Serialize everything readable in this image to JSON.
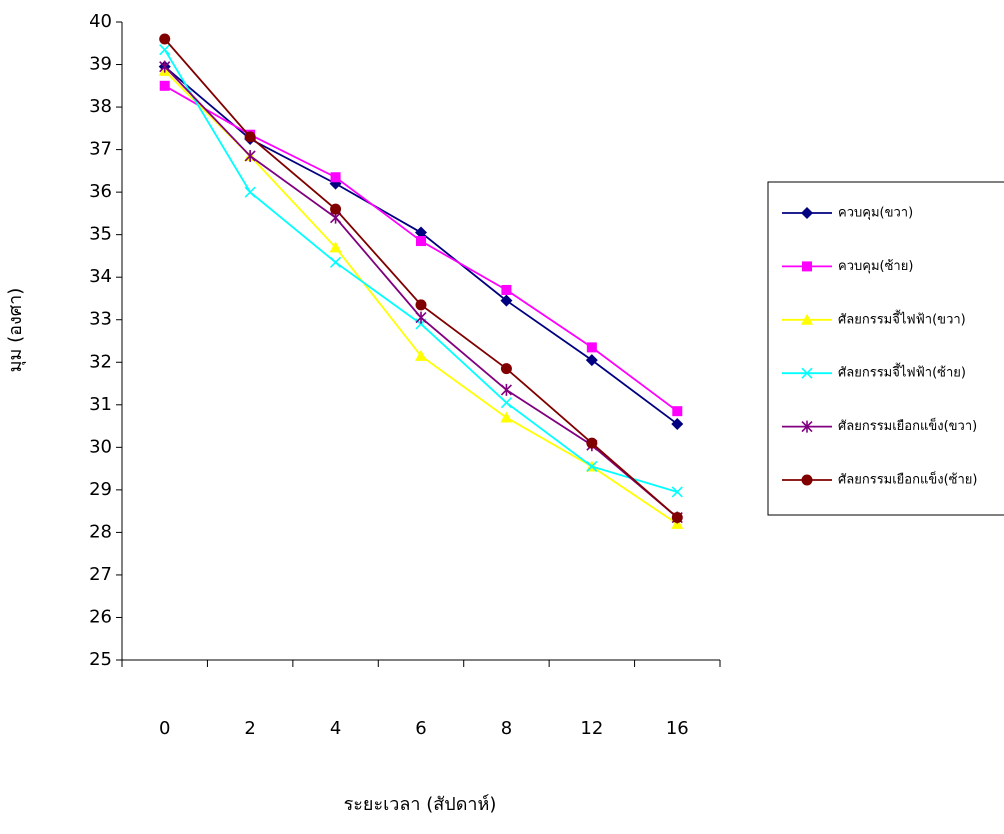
{
  "chart_data": {
    "type": "line",
    "x_label": "ระยะเวลา (สัปดาห์)",
    "y_label": "มุม (องศา)",
    "categories": [
      "0",
      "2",
      "4",
      "6",
      "8",
      "12",
      "16"
    ],
    "ylim": [
      25,
      40
    ],
    "yticks": [
      25,
      26,
      27,
      28,
      29,
      30,
      31,
      32,
      33,
      34,
      35,
      36,
      37,
      38,
      39,
      40
    ],
    "legend": "right",
    "series": [
      {
        "name": "ควบคุม(ขวา)",
        "color": "#000080",
        "marker": "diamond",
        "values": [
          38.95,
          37.25,
          36.2,
          35.05,
          33.45,
          32.05,
          30.55
        ]
      },
      {
        "name": "ควบคุม(ซ้าย)",
        "color": "#ff00ff",
        "marker": "square",
        "values": [
          38.5,
          37.35,
          36.35,
          34.85,
          33.7,
          32.35,
          30.85
        ]
      },
      {
        "name": "ศัลยกรรมจี้ไฟฟ้า(ขวา)",
        "color": "#ffff00",
        "marker": "triangle",
        "values": [
          38.85,
          36.85,
          34.7,
          32.15,
          30.7,
          29.55,
          28.2
        ]
      },
      {
        "name": "ศัลยกรรมจี้ไฟฟ้า(ซ้าย)",
        "color": "#00ffff",
        "marker": "x",
        "values": [
          39.35,
          36.0,
          34.35,
          32.9,
          31.05,
          29.55,
          28.95
        ]
      },
      {
        "name": "ศัลยกรรมเยือกแข็ง(ขวา)",
        "color": "#800080",
        "marker": "asterisk",
        "values": [
          38.95,
          36.85,
          35.4,
          33.05,
          31.35,
          30.05,
          28.35
        ]
      },
      {
        "name": "ศัลยกรรมเยือกแข็ง(ซ้าย)",
        "color": "#800000",
        "marker": "circle",
        "values": [
          39.6,
          37.3,
          35.6,
          33.35,
          31.85,
          30.1,
          28.35
        ]
      }
    ]
  }
}
